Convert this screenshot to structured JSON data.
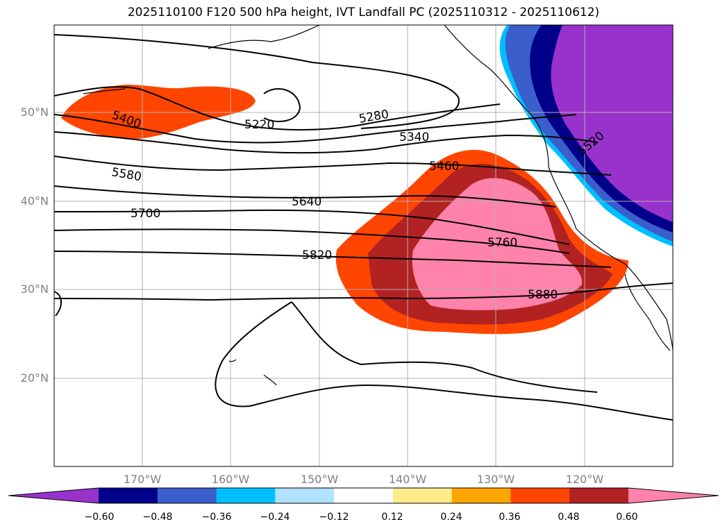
{
  "title": "2025110100 F120 500 hPa height, IVT Landfall PC (2025110312 - 2025110612)",
  "lat_labels": [
    "50°N",
    "40°N",
    "30°N",
    "20°N"
  ],
  "lon_labels": [
    "170°W",
    "160°W",
    "150°W",
    "140°W",
    "130°W",
    "120°W"
  ],
  "contour_labels": [
    "5400",
    "5220",
    "5280",
    "5340",
    "5460",
    "5520",
    "5580",
    "5640",
    "5700",
    "5760",
    "5820",
    "5880"
  ],
  "colorbar": {
    "ticks": [
      "−0.60",
      "−0.48",
      "−0.36",
      "−0.24",
      "−0.12",
      "0.12",
      "0.24",
      "0.36",
      "0.48",
      "0.60"
    ],
    "colors": [
      "#9932cc",
      "#00008b",
      "#3a5fcd",
      "#00bfff",
      "#b0e2ff",
      "#ffffff",
      "#ffec8b",
      "#ffa500",
      "#ff4500",
      "#b22222",
      "#ff82ab"
    ]
  }
}
